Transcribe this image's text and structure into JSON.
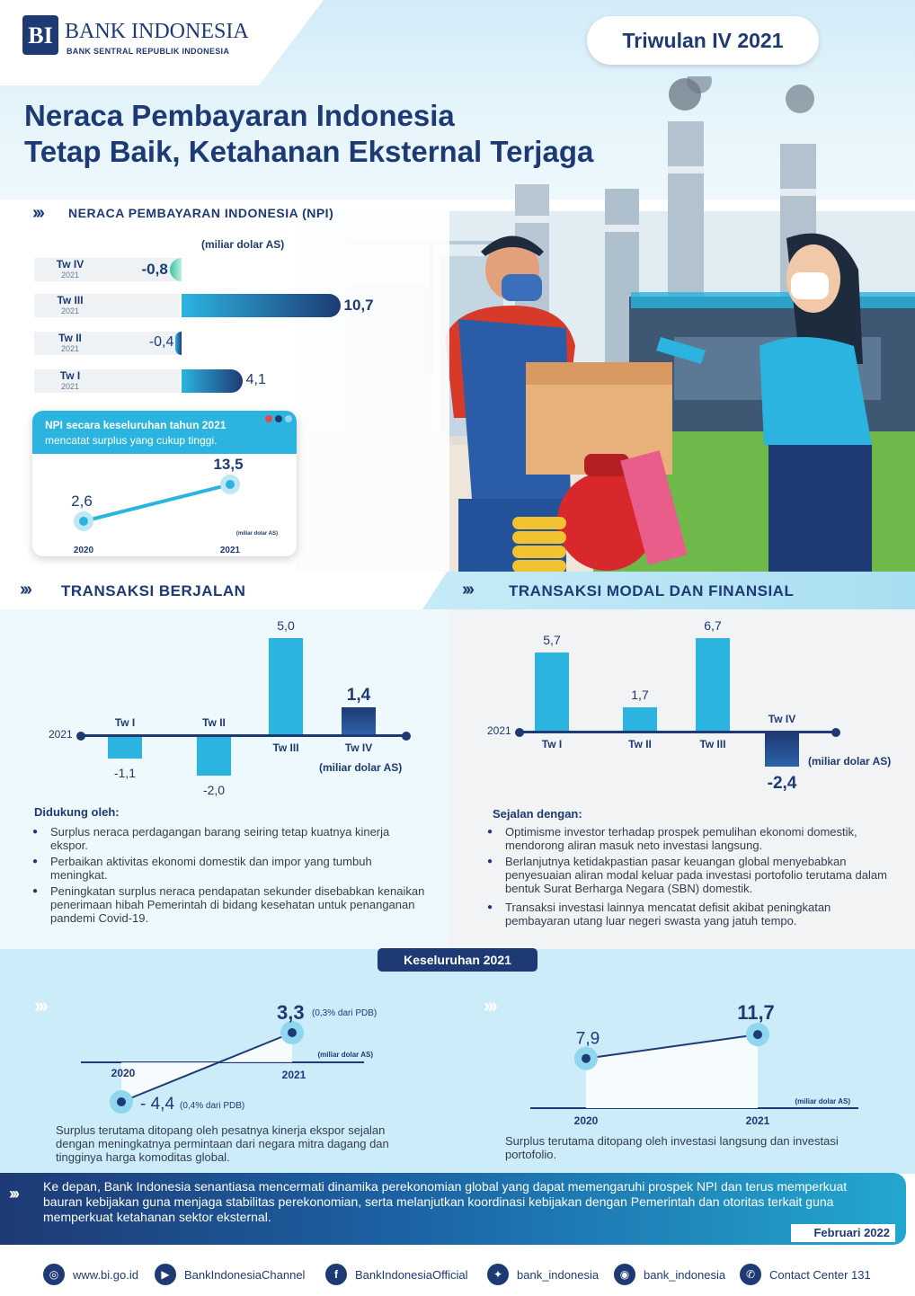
{
  "header": {
    "brand_name": "BANK INDONESIA",
    "brand_sub": "BANK SENTRAL REPUBLIK INDONESIA",
    "period": "Triwulan IV 2021",
    "title_line1": "Neraca Pembayaran Indonesia",
    "title_line2": "Tetap Baik, Ketahanan Eksternal Terjaga"
  },
  "npi": {
    "section_title": "NERACA PEMBAYARAN INDONESIA (NPI)",
    "unit": "(miliar dolar AS)",
    "quarters": [
      {
        "label": "Tw IV",
        "year": "2021",
        "value_text": "-0,8"
      },
      {
        "label": "Tw III",
        "year": "2021",
        "value_text": "10,7"
      },
      {
        "label": "Tw II",
        "year": "2021",
        "value_text": "-0,4"
      },
      {
        "label": "Tw I",
        "year": "2021",
        "value_text": "4,1"
      }
    ],
    "card": {
      "line1": "NPI secara keseluruhan tahun 2021",
      "line2": "mencatat surplus yang cukup tinggi.",
      "unit": "(miliar dolar AS)",
      "points": [
        {
          "year": "2020",
          "value_text": "2,6"
        },
        {
          "year": "2021",
          "value_text": "13,5"
        }
      ]
    }
  },
  "transaksi_berjalan": {
    "title": "TRANSAKSI BERJALAN",
    "year_label": "2021",
    "unit": "(miliar dolar AS)",
    "bars": [
      {
        "label": "Tw I",
        "value_text": "-1,1"
      },
      {
        "label": "Tw II",
        "value_text": "-2,0"
      },
      {
        "label": "Tw III",
        "value_text": "5,0"
      },
      {
        "label": "Tw IV",
        "value_text": "1,4"
      }
    ],
    "notes_title": "Didukung oleh:",
    "notes": [
      "Surplus neraca perdagangan barang seiring tetap kuatnya kinerja ekspor.",
      "Perbaikan aktivitas ekonomi domestik dan impor yang tumbuh meningkat.",
      "Peningkatan surplus neraca pendapatan sekunder disebabkan kenaikan penerimaan hibah Pemerintah di bidang kesehatan untuk penanganan pandemi Covid-19."
    ]
  },
  "transaksi_modal": {
    "title": "TRANSAKSI MODAL DAN FINANSIAL",
    "year_label": "2021",
    "unit": "(miliar dolar AS)",
    "bars": [
      {
        "label": "Tw I",
        "value_text": "5,7"
      },
      {
        "label": "Tw II",
        "value_text": "1,7"
      },
      {
        "label": "Tw III",
        "value_text": "6,7"
      },
      {
        "label": "Tw IV",
        "value_text": "-2,4"
      }
    ],
    "notes_title": "Sejalan dengan:",
    "notes": [
      "Optimisme investor terhadap prospek pemulihan ekonomi domestik, mendorong aliran masuk neto investasi langsung.",
      "Berlanjutnya ketidakpastian pasar keuangan global menyebabkan penyesuaian aliran modal keluar pada investasi portofolio terutama dalam bentuk Surat Berharga Negara (SBN) domestik.",
      "Transaksi investasi lainnya mencatat defisit akibat peningkatan pembayaran utang luar negeri swasta yang jatuh tempo."
    ]
  },
  "keseluruhan": {
    "title": "Keseluruhan 2021",
    "left": {
      "unit": "(miliar dolar AS)",
      "p2020": {
        "year": "2020",
        "value_text": "- 4,4",
        "note": "(0,4% dari PDB)"
      },
      "p2021": {
        "year": "2021",
        "value_text": "3,3",
        "note": "(0,3% dari PDB)"
      },
      "caption": "Surplus terutama ditopang oleh pesatnya kinerja ekspor sejalan dengan meningkatnya permintaan dari negara mitra dagang dan tingginya harga komoditas global."
    },
    "right": {
      "unit": "(miliar dolar AS)",
      "p2020": {
        "year": "2020",
        "value_text": "7,9"
      },
      "p2021": {
        "year": "2021",
        "value_text": "11,7"
      },
      "caption": "Surplus terutama ditopang oleh investasi langsung dan investasi portofolio."
    }
  },
  "footer": {
    "text": "Ke depan, Bank Indonesia senantiasa mencermati dinamika perekonomian global yang dapat memengaruhi prospek NPI dan terus memperkuat bauran kebijakan guna menjaga stabilitas perekonomian, serta melanjutkan koordinasi kebijakan dengan Pemerintah dan otoritas terkait guna memperkuat ketahanan sektor eksternal.",
    "date": "Februari 2022",
    "social": [
      {
        "icon": "globe-icon",
        "text": "www.bi.go.id"
      },
      {
        "icon": "youtube-icon",
        "text": "BankIndonesiaChannel"
      },
      {
        "icon": "facebook-icon",
        "text": "BankIndonesiaOfficial"
      },
      {
        "icon": "twitter-icon",
        "text": "bank_indonesia"
      },
      {
        "icon": "instagram-icon",
        "text": "bank_indonesia"
      },
      {
        "icon": "phone-icon",
        "text": "Contact Center 131"
      }
    ]
  },
  "chart_data": [
    {
      "type": "bar",
      "title": "NERACA PEMBAYARAN INDONESIA (NPI)",
      "ylabel": "(miliar dolar AS)",
      "categories": [
        "Tw IV 2021",
        "Tw III 2021",
        "Tw II 2021",
        "Tw I 2021"
      ],
      "values": [
        -0.8,
        10.7,
        -0.4,
        4.1
      ]
    },
    {
      "type": "line",
      "title": "NPI secara keseluruhan tahun 2021",
      "x": [
        "2020",
        "2021"
      ],
      "values": [
        2.6,
        13.5
      ],
      "ylabel": "(miliar dolar AS)"
    },
    {
      "type": "bar",
      "title": "TRANSAKSI BERJALAN",
      "categories": [
        "Tw I",
        "Tw II",
        "Tw III",
        "Tw IV"
      ],
      "values": [
        -1.1,
        -2.0,
        5.0,
        1.4
      ],
      "ylabel": "(miliar dolar AS)"
    },
    {
      "type": "bar",
      "title": "TRANSAKSI MODAL DAN FINANSIAL",
      "categories": [
        "Tw I",
        "Tw II",
        "Tw III",
        "Tw IV"
      ],
      "values": [
        5.7,
        1.7,
        6.7,
        -2.4
      ],
      "ylabel": "(miliar dolar AS)"
    },
    {
      "type": "line",
      "title": "Keseluruhan 2021",
      "x": [
        "2020",
        "2021"
      ],
      "values": [
        -4.4,
        3.3
      ],
      "ylabel": "(miliar dolar AS)"
    },
    {
      "type": "area",
      "title": "Keseluruhan 2021",
      "x": [
        "2020",
        "2021"
      ],
      "values": [
        7.9,
        11.7
      ],
      "ylabel": "(miliar dolar AS)"
    }
  ]
}
